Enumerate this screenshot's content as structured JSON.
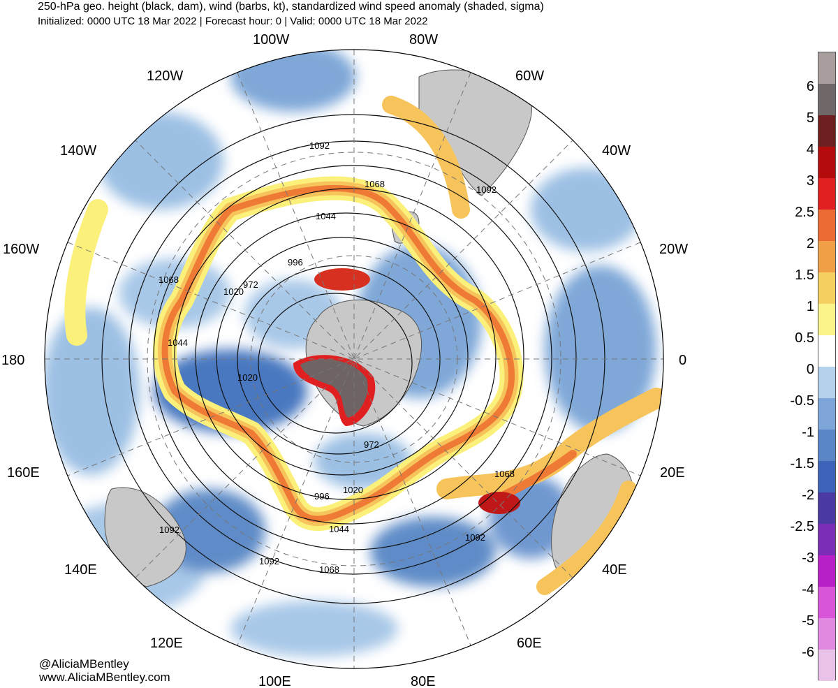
{
  "header": {
    "title": "250-hPa geo. height (black, dam), wind (barbs, kt), standardized wind speed anomaly (shaded, sigma)",
    "subtitle": "Initialized: 0000 UTC 18 Mar 2022 | Forecast hour: 0 | Valid: 0000 UTC 18 Mar 2022"
  },
  "credits": {
    "handle": "@AliciaMBentley",
    "website": "www.AliciaMBentley.com"
  },
  "map": {
    "projection": "south-polar-stereographic",
    "longitude_labels": [
      "100W",
      "80W",
      "120W",
      "60W",
      "140W",
      "40W",
      "160W",
      "20W",
      "180",
      "0",
      "160E",
      "20E",
      "140E",
      "40E",
      "120E",
      "60E",
      "100E",
      "80E"
    ],
    "contour_labels": [
      "1092",
      "1068",
      "1092",
      "1044",
      "996",
      "1068",
      "1020",
      "972",
      "1044",
      "1020",
      "972",
      "1068",
      "996",
      "1020",
      "1044",
      "1092",
      "1092",
      "1092",
      "1068"
    ],
    "colors": {
      "land": "#c8c8c8",
      "neg_anomaly": "#6f98d0",
      "pos_anomaly": "#f08a3a",
      "extreme": "#6e6464"
    }
  },
  "colorbar": {
    "tick_labels": [
      "6",
      "5",
      "4",
      "3",
      "2.5",
      "2",
      "1.5",
      "1",
      "0.5",
      "0",
      "-0.5",
      "-1",
      "-1.5",
      "-2",
      "-2.5",
      "-3",
      "-4",
      "-5",
      "-6"
    ],
    "colors": [
      "#e8c2e8",
      "#e28ae2",
      "#d854d8",
      "#b820c8",
      "#7b2db8",
      "#4b3aa4",
      "#3d64b8",
      "#5a86c8",
      "#7ea6d8",
      "#b4d2ec",
      "#ffffff",
      "#fbf48a",
      "#f6d060",
      "#f2a048",
      "#ec6a34",
      "#e02020",
      "#b40c0c",
      "#6e2020",
      "#706868",
      "#a89e9e"
    ]
  }
}
